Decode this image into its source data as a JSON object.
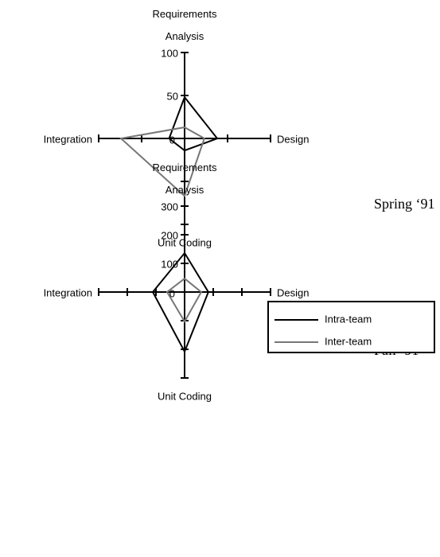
{
  "chart_data": [
    {
      "type": "radar",
      "title": "Spring ‘91",
      "categories": [
        "Requirements Analysis",
        "Design",
        "Unit Coding",
        "Integration"
      ],
      "series": [
        {
          "color": "#000000",
          "values": [
            48,
            38,
            14,
            18
          ]
        },
        {
          "color": "#777777",
          "values": [
            13,
            23,
            67,
            74
          ]
        }
      ],
      "ylim": [
        0,
        100
      ],
      "yticks": [
        0,
        50,
        100
      ]
    },
    {
      "type": "radar",
      "title": "Fall ‘91",
      "categories": [
        "Requirements Analysis",
        "Design",
        "Unit Coding",
        "Integration"
      ],
      "series": [
        {
          "name": "Intra-team",
          "color": "#000000",
          "values": [
            136,
            83,
            208,
            111
          ]
        },
        {
          "name": "Inter-team",
          "color": "#777777",
          "values": [
            47,
            58,
            103,
            61
          ]
        }
      ],
      "ylim": [
        0,
        300
      ],
      "yticks": [
        0,
        100,
        200,
        300
      ],
      "legend": "upper right"
    }
  ]
}
